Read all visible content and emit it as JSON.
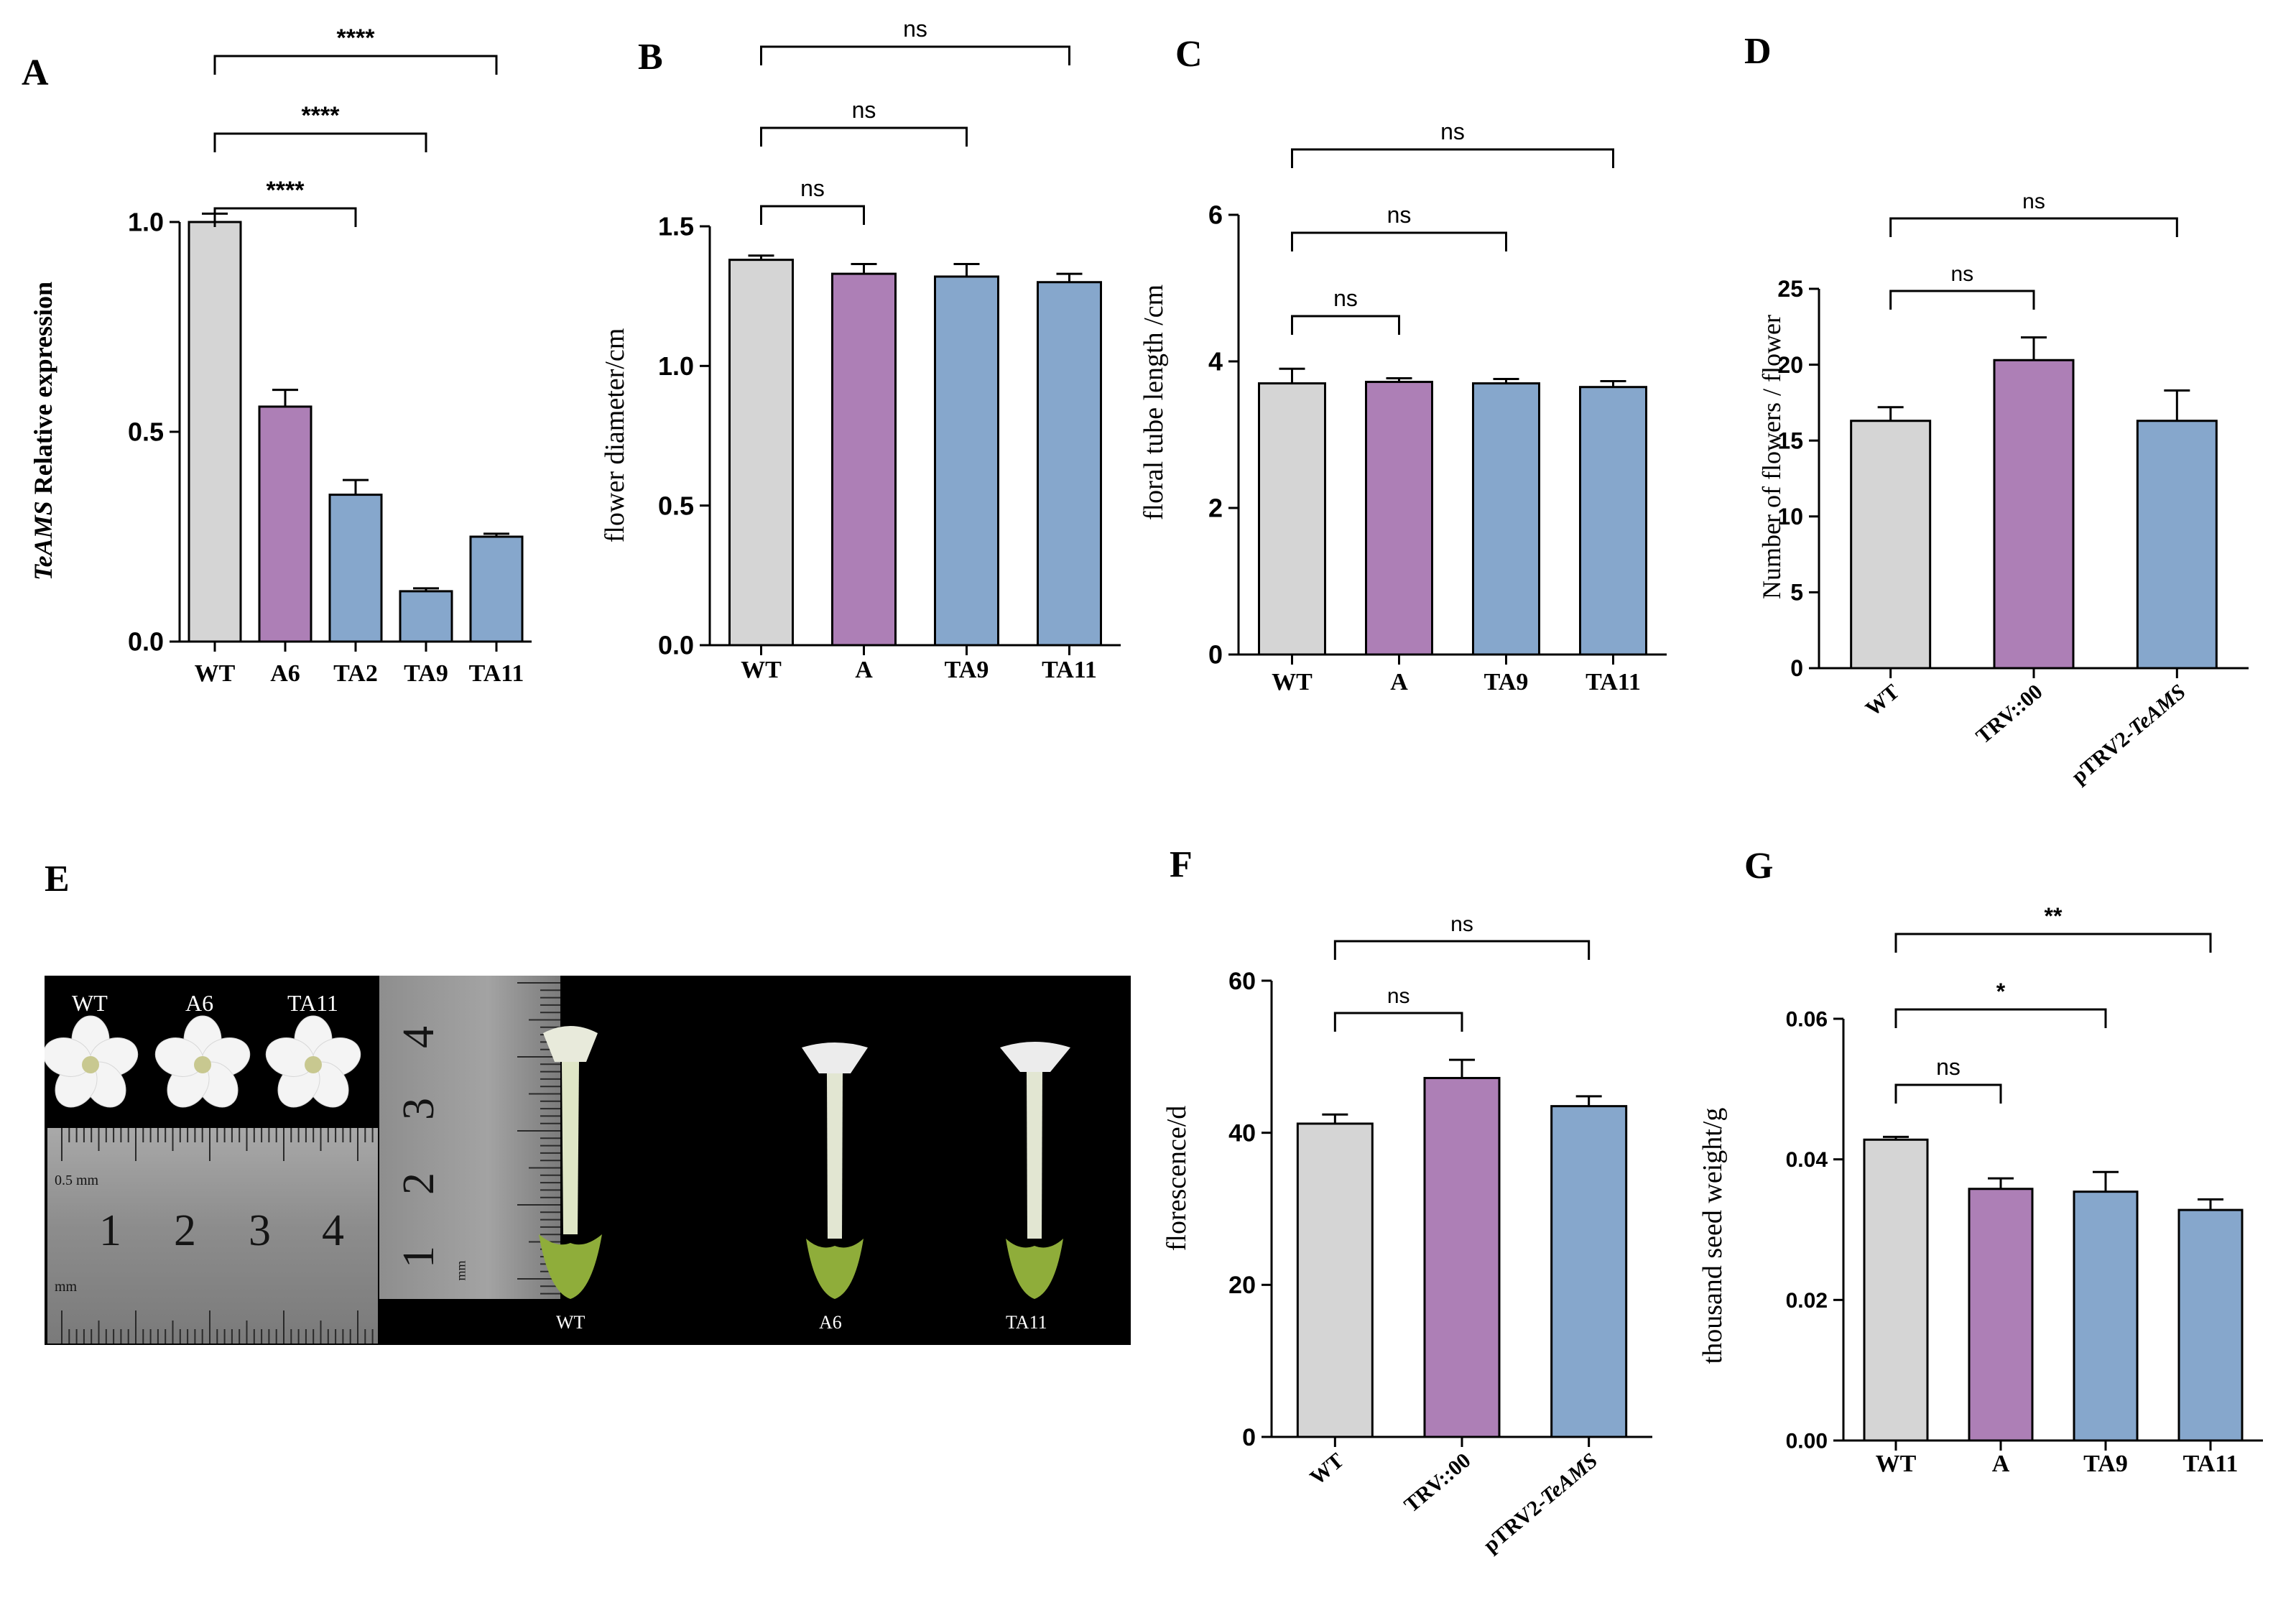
{
  "panel_letters": [
    "A",
    "B",
    "C",
    "D",
    "E",
    "F",
    "G"
  ],
  "colors": {
    "wt": "#d5d5d5",
    "purple": "#ad7fb6",
    "blue": "#86a7cc",
    "axis": "#000000",
    "photo_bg": "#000000",
    "ruler": "#9a9a9a"
  },
  "photo": {
    "top_labels": [
      "WT",
      "A6",
      "TA11"
    ],
    "bottom_labels": [
      "WT",
      "A6",
      "TA11"
    ],
    "ruler1_numbers": [
      "1",
      "2",
      "3",
      "4"
    ],
    "ruler2_numbers": [
      "4",
      "3",
      "2",
      "1"
    ],
    "ruler_mark_1": "0.5 mm",
    "ruler_mark_2": "mm",
    "ruler_mark_3": "mm"
  },
  "chart_data": [
    {
      "panel": "A",
      "type": "bar",
      "ylabel_italic": "TeAMS",
      "ylabel_rest": " Relative expression",
      "categories": [
        "WT",
        "A6",
        "TA2",
        "TA9",
        "TA11"
      ],
      "values": [
        1.0,
        0.56,
        0.35,
        0.12,
        0.25
      ],
      "errors": [
        0.02,
        0.04,
        0.035,
        0.007,
        0.007
      ],
      "ylim": [
        0,
        1.0
      ],
      "ticks": [
        "0.0",
        "0.5",
        "1.0"
      ],
      "significance": [
        {
          "from": "WT",
          "to": "TA2",
          "label": "****"
        },
        {
          "from": "WT",
          "to": "TA9",
          "label": "****"
        },
        {
          "from": "WT",
          "to": "TA11",
          "label": "****"
        }
      ]
    },
    {
      "panel": "B",
      "type": "bar",
      "ylabel": "flower diameter/cm",
      "categories": [
        "WT",
        "A",
        "TA9",
        "TA11"
      ],
      "values": [
        1.38,
        1.33,
        1.32,
        1.3
      ],
      "errors": [
        0.015,
        0.035,
        0.045,
        0.03
      ],
      "ylim": [
        0,
        1.5
      ],
      "ticks": [
        "0.0",
        "0.5",
        "1.0",
        "1.5"
      ],
      "significance": [
        {
          "from": "WT",
          "to": "A",
          "label": "ns"
        },
        {
          "from": "WT",
          "to": "TA9",
          "label": "ns"
        },
        {
          "from": "WT",
          "to": "TA11",
          "label": "ns"
        }
      ]
    },
    {
      "panel": "C",
      "type": "bar",
      "ylabel": "floral tube length /cm",
      "categories": [
        "WT",
        "A",
        "TA9",
        "TA11"
      ],
      "values": [
        3.7,
        3.72,
        3.7,
        3.65
      ],
      "errors": [
        0.2,
        0.05,
        0.06,
        0.08
      ],
      "ylim": [
        0,
        6
      ],
      "ticks": [
        "0",
        "2",
        "4",
        "6"
      ],
      "significance": [
        {
          "from": "WT",
          "to": "A",
          "label": "ns"
        },
        {
          "from": "WT",
          "to": "TA9",
          "label": "ns"
        },
        {
          "from": "WT",
          "to": "TA11",
          "label": "ns"
        }
      ]
    },
    {
      "panel": "D",
      "type": "bar",
      "ylabel": "Number of flowers / flower",
      "categories": [
        "WT",
        "TRV::00",
        "pTRV2-TeAMS"
      ],
      "values": [
        16.3,
        20.3,
        16.3
      ],
      "errors": [
        0.9,
        1.5,
        2.0
      ],
      "ylim": [
        0,
        25
      ],
      "ticks": [
        "0",
        "5",
        "10",
        "15",
        "20",
        "25"
      ],
      "significance": [
        {
          "from": "WT",
          "to": "TRV::00",
          "label": "ns"
        },
        {
          "from": "WT",
          "to": "pTRV2-TeAMS",
          "label": "ns"
        }
      ]
    },
    {
      "panel": "F",
      "type": "bar",
      "ylabel": "florescence/d",
      "categories": [
        "WT",
        "TRV::00",
        "pTRV2-TeAMS"
      ],
      "values": [
        41.2,
        47.2,
        43.5
      ],
      "errors": [
        1.2,
        2.4,
        1.3
      ],
      "ylim": [
        0,
        60
      ],
      "ticks": [
        "0",
        "20",
        "40",
        "60"
      ],
      "significance": [
        {
          "from": "WT",
          "to": "TRV::00",
          "label": "ns"
        },
        {
          "from": "WT",
          "to": "pTRV2-TeAMS",
          "label": "ns"
        }
      ]
    },
    {
      "panel": "G",
      "type": "bar",
      "ylabel": "thousand seed weight/g",
      "categories": [
        "WT",
        "A",
        "TA9",
        "TA11"
      ],
      "values": [
        0.0428,
        0.0358,
        0.0354,
        0.0328
      ],
      "errors": [
        0.0004,
        0.0015,
        0.0028,
        0.0015
      ],
      "ylim": [
        0,
        0.06
      ],
      "ticks": [
        "0.00",
        "0.02",
        "0.04",
        "0.06"
      ],
      "significance": [
        {
          "from": "WT",
          "to": "A",
          "label": "ns"
        },
        {
          "from": "WT",
          "to": "TA9",
          "label": "*"
        },
        {
          "from": "WT",
          "to": "TA11",
          "label": "**"
        }
      ]
    }
  ]
}
